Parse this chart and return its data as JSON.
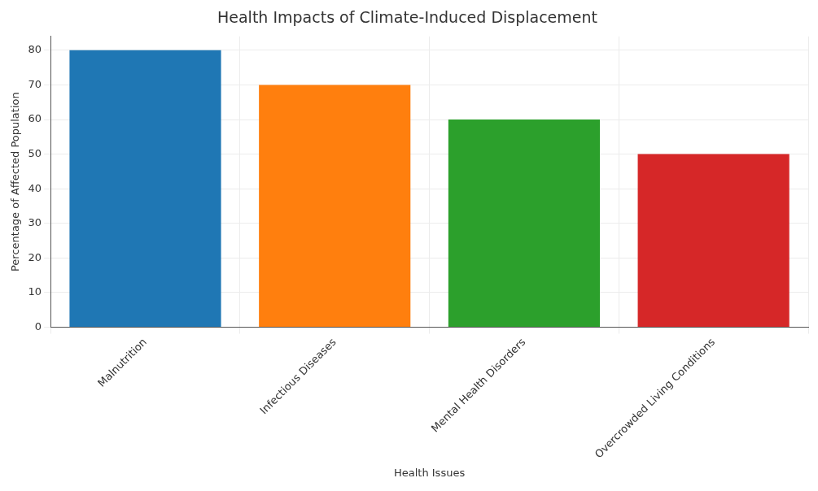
{
  "chart_data": {
    "type": "bar",
    "title": "Health Impacts of Climate-Induced Displacement",
    "xlabel": "Health Issues",
    "ylabel": "Percentage of Affected Population",
    "categories": [
      "Malnutrition",
      "Infectious Diseases",
      "Mental Health Disorders",
      "Overcrowded Living Conditions"
    ],
    "values": [
      80,
      70,
      60,
      50
    ],
    "colors": [
      "#1f77b4",
      "#ff7f0e",
      "#2ca02c",
      "#d62728"
    ],
    "ylim": [
      0,
      84
    ],
    "yticks": [
      0,
      10,
      20,
      30,
      40,
      50,
      60,
      70,
      80
    ],
    "grid": true
  }
}
